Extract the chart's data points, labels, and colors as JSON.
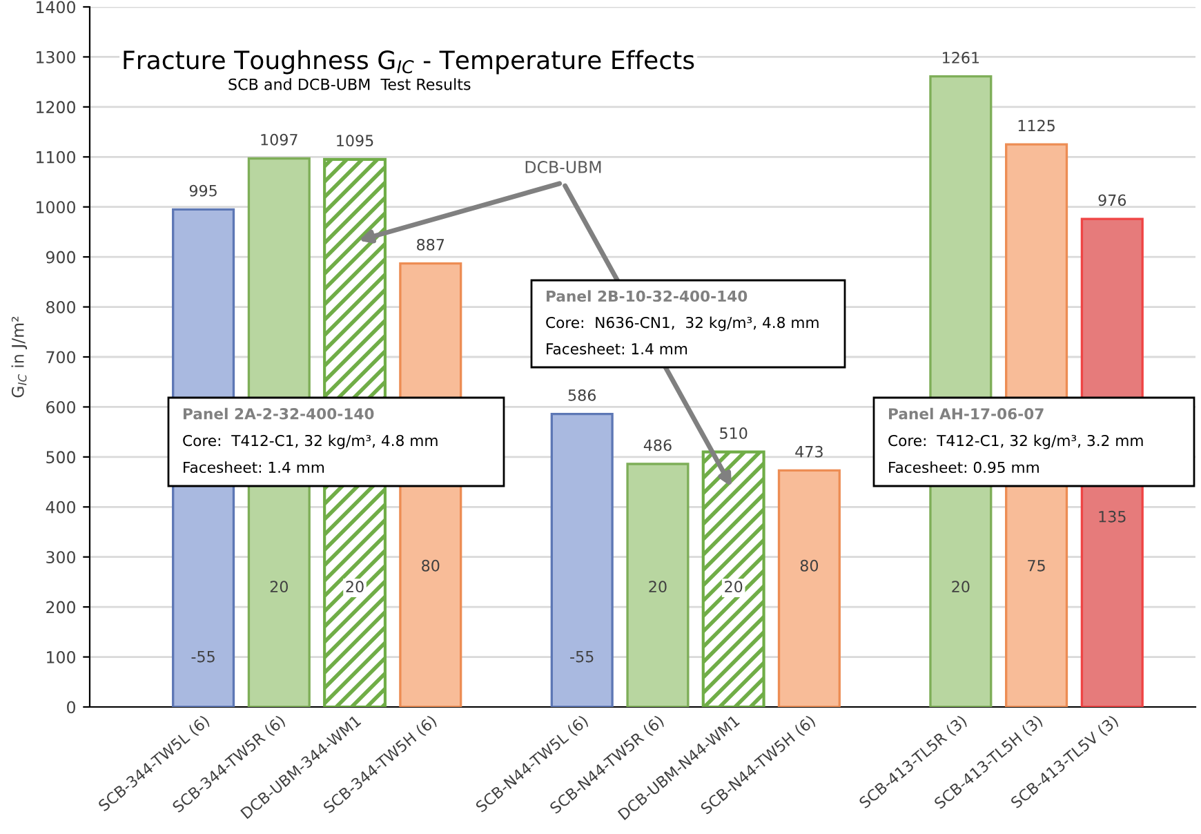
{
  "chart_data": {
    "type": "bar",
    "title": "Fracture Toughness G$_{IC}$ - Temperature Effects",
    "subtitle": "SCB and DCB-UBM  Test Results",
    "ylabel": "G$_{IC}$ in J/m²",
    "categories": [
      "SCB-344-TW5L (6)",
      "SCB-344-TW5R (6)",
      "DCB-UBM-344-WM1",
      "SCB-344-TW5H (6)",
      null,
      "SCB-N44-TW5L (6)",
      "SCB-N44-TW5R (6)",
      "DCB-UBM-N44-WM1",
      "SCB-N44-TW5H (6)",
      null,
      "SCB-413-TL5R (3)",
      "SCB-413-TL5H (3)",
      "SCB-413-TL5V (3)"
    ],
    "series": [
      {
        "colors": [
          "#a9b9e0",
          "#b8d6a0",
          null,
          "#f8bc98",
          null,
          "#a9b9e0",
          "#b8d6a0",
          null,
          "#f8bc98",
          null,
          "#b8d6a0",
          "#f8bc98",
          "#e67b7b"
        ],
        "values": [
          995,
          1097,
          null,
          887,
          null,
          586,
          486,
          null,
          473,
          null,
          1261,
          1125,
          976
        ]
      },
      {
        "color": "#70ad47",
        "values": [
          null,
          null,
          1095,
          null,
          null,
          null,
          null,
          510,
          null,
          null,
          null,
          null,
          null
        ]
      }
    ],
    "ylim": [
      0,
      1400
    ],
    "yticks": [
      0,
      100,
      200,
      300,
      400,
      500,
      600,
      700,
      800,
      900,
      1000,
      1100,
      1200,
      1300,
      1400
    ],
    "grid": "y",
    "data_labels": true,
    "annotations": [
      "-55",
      "20",
      "20",
      "80",
      "-55",
      "20",
      "20",
      "80",
      "20",
      "75",
      "135",
      "DCB-UBM",
      "Panel 2A-2-32-400-140\nCore:  T412-C1, 32 kg/m³, 4.8 mm\nFacesheet: 1.4 mm",
      "Panel 2B-10-32-400-140\nCore:  N636-CN1,  32 kg/m³, 4.8 mm\nFacesheet: 1.4 mm",
      "Panel AH-17-06-07\nCore:  T412-C1, 32 kg/m³, 3.2 mm\nFacesheet: 0.95 mm"
    ]
  }
}
